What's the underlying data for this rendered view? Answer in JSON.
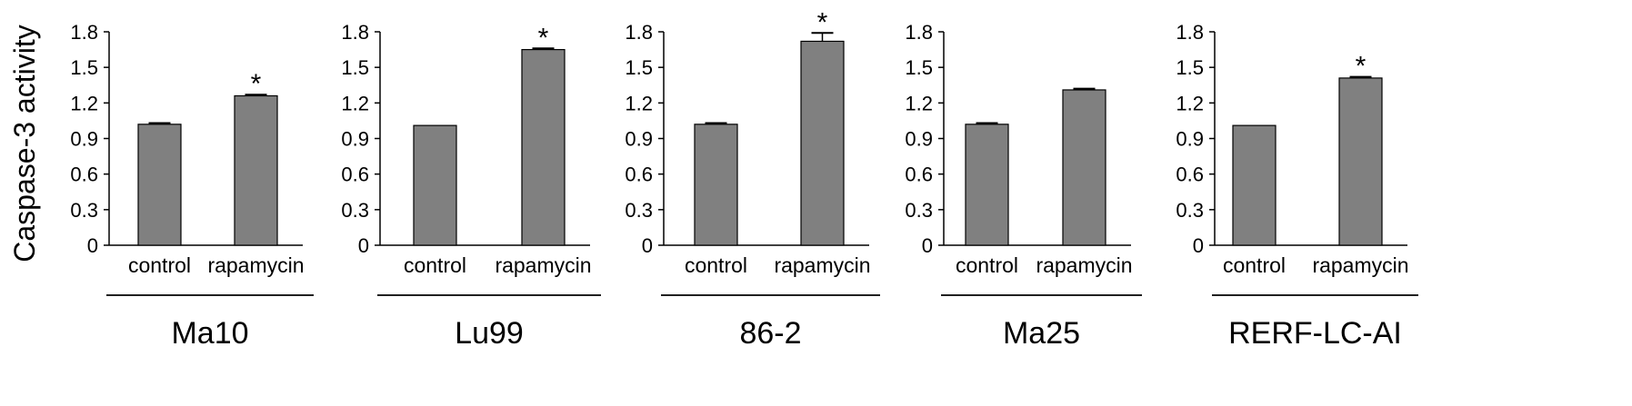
{
  "figure": {
    "ylabel": "Caspase-3 activity"
  },
  "chart_data": [
    {
      "type": "bar",
      "title": "Ma10",
      "categories": [
        "control",
        "rapamycin"
      ],
      "values": [
        1.02,
        1.26
      ],
      "errors": [
        0.01,
        0.01
      ],
      "significance": [
        "",
        "*"
      ],
      "ylabel": "Caspase-3 activity",
      "ylim": [
        0,
        1.8
      ],
      "yticks": [
        "0",
        "0.3",
        "0.6",
        "0.9",
        "1.2",
        "1.5",
        "1.8"
      ],
      "bar_color": "#808080",
      "grid": false
    },
    {
      "type": "bar",
      "title": "Lu99",
      "categories": [
        "control",
        "rapamycin"
      ],
      "values": [
        1.01,
        1.65
      ],
      "errors": [
        0.0,
        0.01
      ],
      "significance": [
        "",
        "*"
      ],
      "ylim": [
        0,
        1.8
      ],
      "yticks": [
        "0",
        "0.3",
        "0.6",
        "0.9",
        "1.2",
        "1.5",
        "1.8"
      ],
      "bar_color": "#808080",
      "grid": false
    },
    {
      "type": "bar",
      "title": "86-2",
      "categories": [
        "control",
        "rapamycin"
      ],
      "values": [
        1.02,
        1.72
      ],
      "errors": [
        0.01,
        0.07
      ],
      "significance": [
        "",
        "*"
      ],
      "ylim": [
        0,
        1.8
      ],
      "yticks": [
        "0",
        "0.3",
        "0.6",
        "0.9",
        "1.2",
        "1.5",
        "1.8"
      ],
      "bar_color": "#808080",
      "grid": false
    },
    {
      "type": "bar",
      "title": "Ma25",
      "categories": [
        "control",
        "rapamycin"
      ],
      "values": [
        1.02,
        1.31
      ],
      "errors": [
        0.01,
        0.01
      ],
      "significance": [
        "",
        ""
      ],
      "ylim": [
        0,
        1.8
      ],
      "yticks": [
        "0",
        "0.3",
        "0.6",
        "0.9",
        "1.2",
        "1.5",
        "1.8"
      ],
      "bar_color": "#808080",
      "grid": false
    },
    {
      "type": "bar",
      "title": "RERF-LC-AI",
      "categories": [
        "control",
        "rapamycin"
      ],
      "values": [
        1.01,
        1.41
      ],
      "errors": [
        0.0,
        0.01
      ],
      "significance": [
        "",
        "*"
      ],
      "ylim": [
        0,
        1.8
      ],
      "yticks": [
        "0",
        "0.3",
        "0.6",
        "0.9",
        "1.2",
        "1.5",
        "1.8"
      ],
      "bar_color": "#808080",
      "grid": false
    }
  ]
}
